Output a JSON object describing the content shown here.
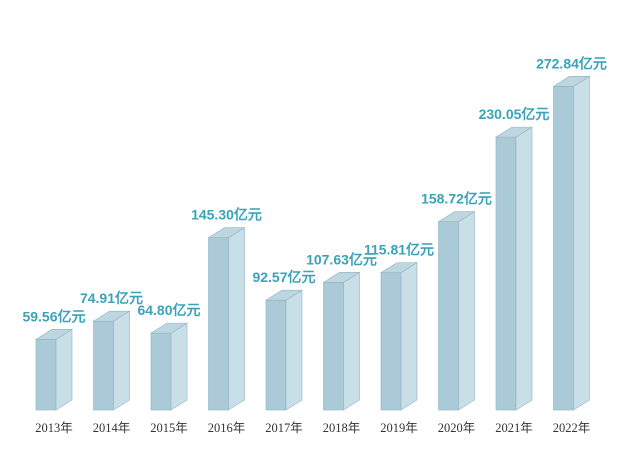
{
  "chart_data": {
    "type": "bar",
    "categories": [
      "2013年",
      "2014年",
      "2015年",
      "2016年",
      "2017年",
      "2018年",
      "2019年",
      "2020年",
      "2021年",
      "2022年"
    ],
    "values": [
      59.56,
      74.91,
      64.8,
      145.3,
      92.57,
      107.63,
      115.81,
      158.72,
      230.05,
      272.84
    ],
    "data_labels": [
      "59.56亿元",
      "74.91亿元",
      "64.80亿元",
      "145.30亿元",
      "92.57亿元",
      "107.63亿元",
      "115.81亿元",
      "158.72亿元",
      "230.05亿元",
      "272.84亿元"
    ],
    "title": "",
    "xlabel": "",
    "ylabel": "",
    "ylim": [
      0,
      290
    ],
    "grid": false,
    "legend": "none",
    "colors": {
      "bar_front": "#a9cad6",
      "bar_side": "#c9dfe7",
      "bar_top": "#bdd6e0",
      "bar_edge": "#8fb4c2",
      "label": "#3aa3b9"
    }
  }
}
